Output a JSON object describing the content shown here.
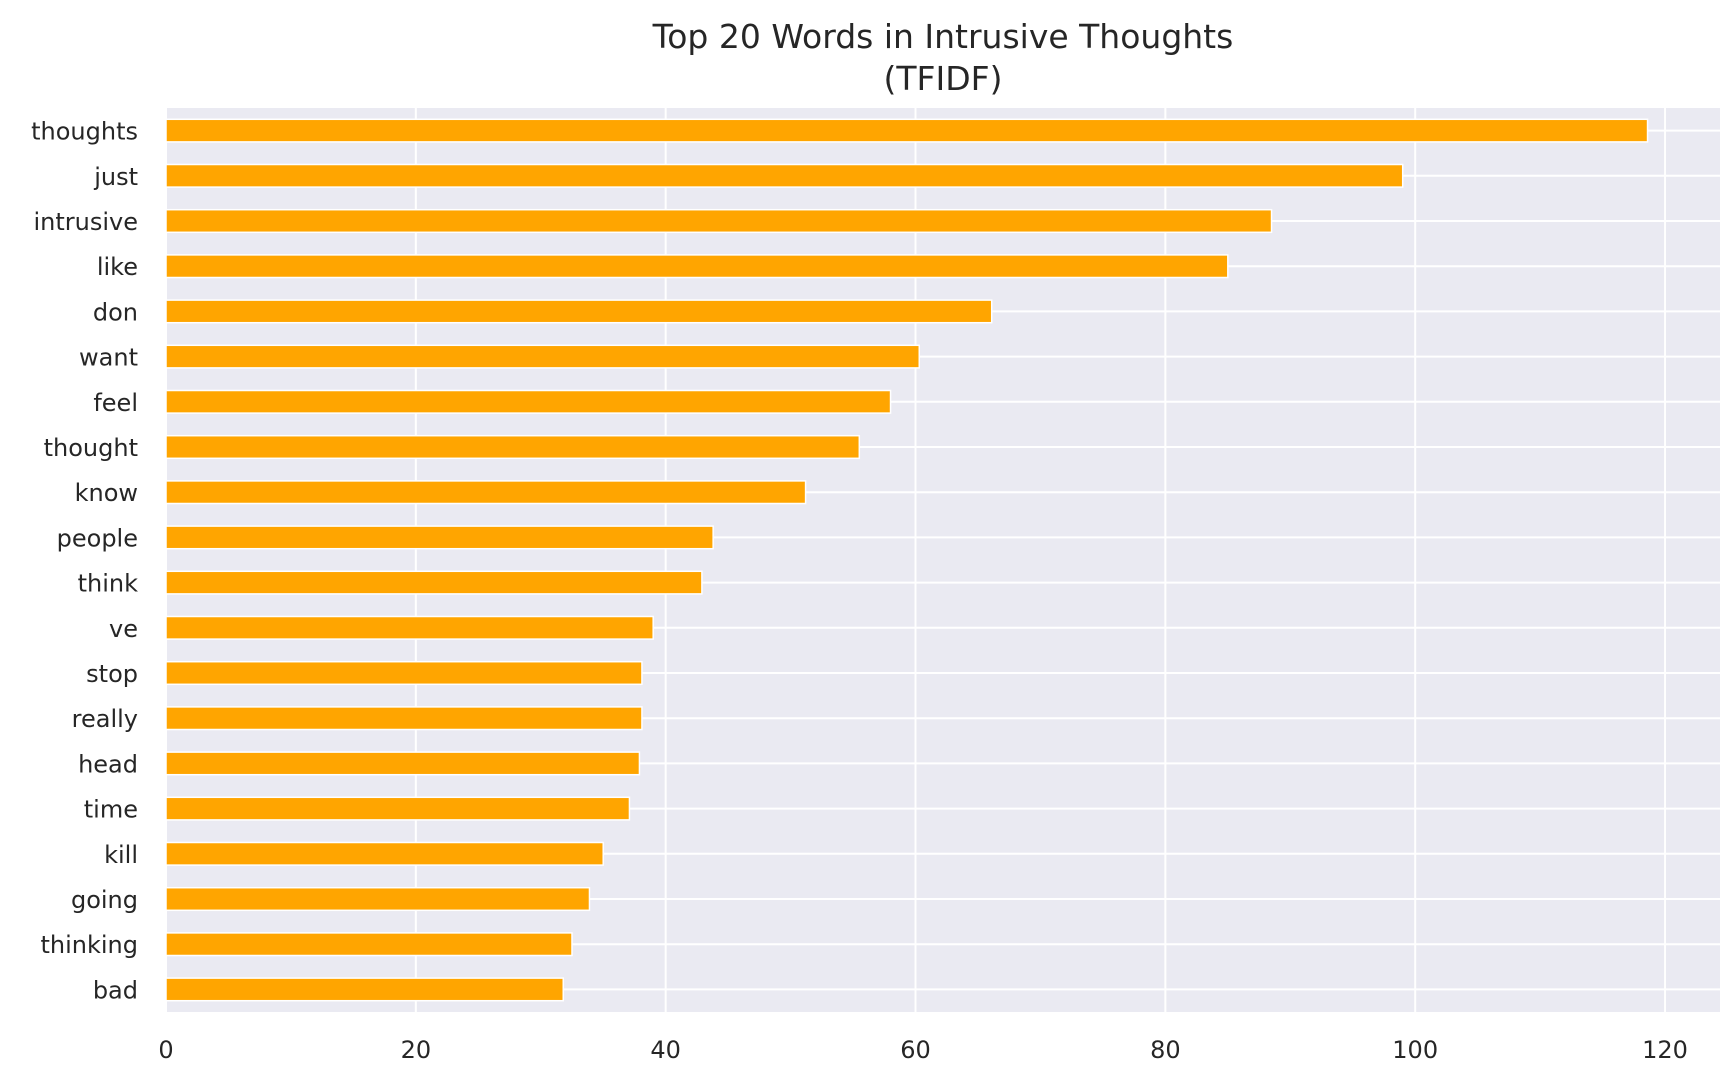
{
  "chart_data": {
    "type": "bar",
    "orientation": "horizontal",
    "title": "Top 20 Words in Intrusive Thoughts",
    "subtitle": "(TFIDF)",
    "xlabel": "",
    "ylabel": "",
    "xlim": [
      0,
      124.4
    ],
    "xticks": [
      0,
      20,
      40,
      60,
      80,
      100,
      120
    ],
    "grid": true,
    "colors": {
      "bar": "#ffa500",
      "bar_edge": "#ffffff",
      "plot_background": "#eaeaf2",
      "grid": "#ffffff",
      "text": "#262626"
    },
    "categories": [
      "thoughts",
      "just",
      "intrusive",
      "like",
      "don",
      "want",
      "feel",
      "thought",
      "know",
      "people",
      "think",
      "ve",
      "stop",
      "really",
      "head",
      "time",
      "kill",
      "going",
      "thinking",
      "bad"
    ],
    "values": [
      118.6,
      99.0,
      88.5,
      85.0,
      66.1,
      60.3,
      58.0,
      55.5,
      51.2,
      43.8,
      42.9,
      39.0,
      38.1,
      38.1,
      37.9,
      37.1,
      35.0,
      33.9,
      32.5,
      31.8
    ]
  }
}
